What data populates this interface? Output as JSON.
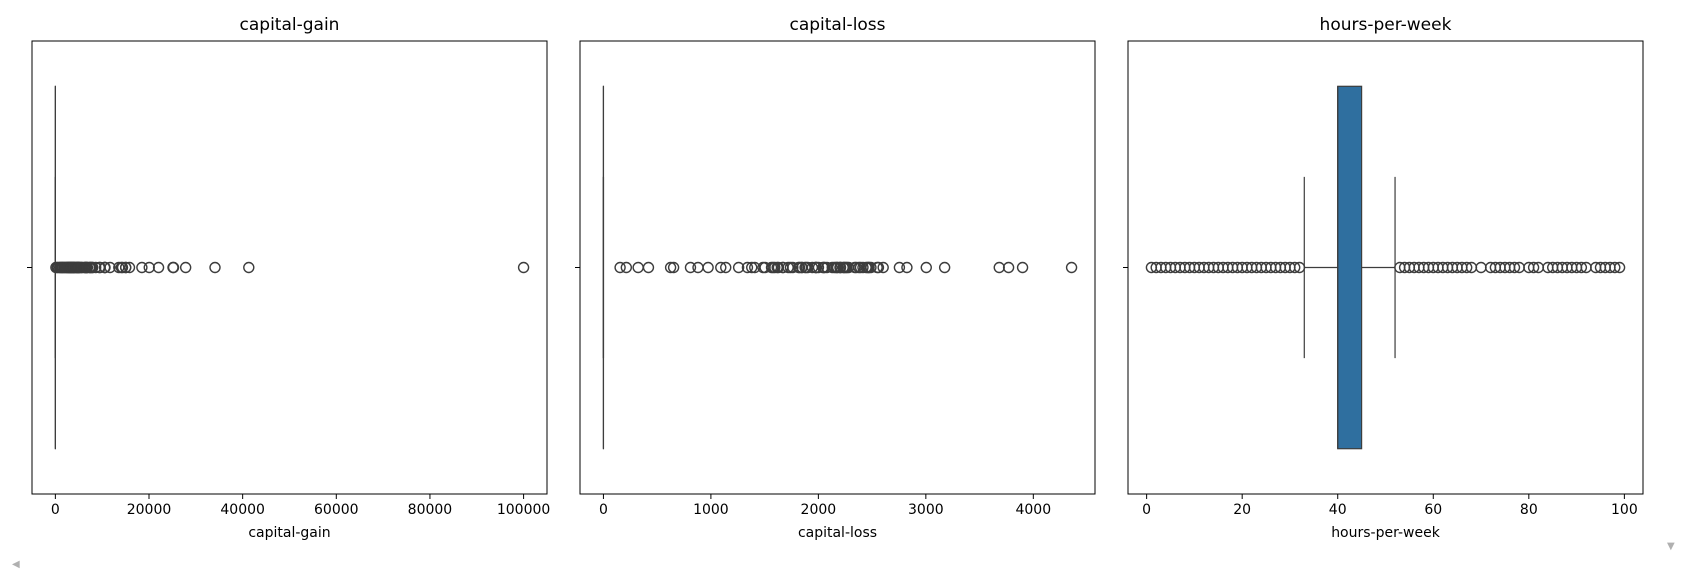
{
  "chart_data": [
    {
      "type": "box",
      "orientation": "horizontal",
      "title": "capital-gain",
      "xlabel": "capital-gain",
      "ylabel": "",
      "xlim": [
        -4990,
        105000
      ],
      "xticks": [
        0,
        20000,
        40000,
        60000,
        80000,
        100000
      ],
      "xtick_labels": [
        "0",
        "20000",
        "40000",
        "60000",
        "80000",
        "100000"
      ],
      "box": {
        "whisker_low": 0,
        "q1": 0,
        "median": 0,
        "q3": 0,
        "whisker_high": 0
      },
      "box_filled": false,
      "outliers": [
        114,
        401,
        594,
        914,
        1055,
        1151,
        1409,
        1471,
        1506,
        1797,
        1831,
        2050,
        2174,
        2354,
        2463,
        2580,
        2635,
        2829,
        2885,
        2907,
        2964,
        3103,
        3137,
        3273,
        3325,
        3411,
        3418,
        3432,
        3464,
        3674,
        3781,
        3818,
        3887,
        3908,
        3942,
        4064,
        4101,
        4386,
        4416,
        4508,
        4650,
        4687,
        4787,
        4865,
        4931,
        4934,
        5013,
        5060,
        5178,
        5455,
        5556,
        5721,
        6097,
        6360,
        6418,
        6497,
        6514,
        6723,
        6767,
        6849,
        7298,
        7430,
        7443,
        7688,
        7896,
        7978,
        8614,
        9386,
        9562,
        10520,
        10566,
        10605,
        11678,
        13550,
        14084,
        14344,
        15020,
        15024,
        15831,
        18481,
        20051,
        22040,
        25124,
        25236,
        27828,
        34095,
        41310,
        99999
      ],
      "grid": false,
      "legend": "none"
    },
    {
      "type": "box",
      "orientation": "horizontal",
      "title": "capital-loss",
      "xlabel": "capital-loss",
      "ylabel": "",
      "xlim": [
        -218,
        4574
      ],
      "xticks": [
        0,
        1000,
        2000,
        3000,
        4000
      ],
      "xtick_labels": [
        "0",
        "1000",
        "2000",
        "3000",
        "4000"
      ],
      "box": {
        "whisker_low": 0,
        "q1": 0,
        "median": 0,
        "q3": 0,
        "whisker_high": 0
      },
      "box_filled": false,
      "outliers": [
        155,
        213,
        323,
        419,
        625,
        653,
        810,
        880,
        974,
        1092,
        1138,
        1258,
        1340,
        1380,
        1408,
        1485,
        1504,
        1564,
        1579,
        1594,
        1617,
        1628,
        1668,
        1672,
        1719,
        1740,
        1762,
        1816,
        1825,
        1844,
        1848,
        1876,
        1887,
        1902,
        1944,
        1974,
        1977,
        1980,
        2001,
        2042,
        2051,
        2057,
        2080,
        2129,
        2149,
        2163,
        2174,
        2179,
        2201,
        2205,
        2206,
        2231,
        2238,
        2246,
        2258,
        2267,
        2282,
        2339,
        2352,
        2377,
        2392,
        2415,
        2444,
        2457,
        2467,
        2472,
        2489,
        2547,
        2559,
        2603,
        2754,
        2824,
        3004,
        3175,
        3683,
        3770,
        3900,
        4356
      ],
      "grid": false,
      "legend": "none"
    },
    {
      "type": "box",
      "orientation": "horizontal",
      "title": "hours-per-week",
      "xlabel": "hours-per-week",
      "ylabel": "",
      "xlim": [
        -3.9,
        103.9
      ],
      "xticks": [
        0,
        20,
        40,
        60,
        80,
        100
      ],
      "xtick_labels": [
        "0",
        "20",
        "40",
        "60",
        "80",
        "100"
      ],
      "box": {
        "whisker_low": 33,
        "q1": 40,
        "median": 40,
        "q3": 45,
        "whisker_high": 52
      },
      "box_filled": true,
      "box_color": "#2f6f9f",
      "outliers": [
        1,
        2,
        3,
        4,
        5,
        6,
        7,
        8,
        9,
        10,
        11,
        12,
        13,
        14,
        15,
        16,
        17,
        18,
        19,
        20,
        21,
        22,
        23,
        24,
        25,
        26,
        27,
        28,
        29,
        30,
        31,
        32,
        53,
        54,
        55,
        56,
        57,
        58,
        59,
        60,
        61,
        62,
        63,
        64,
        65,
        66,
        67,
        68,
        70,
        72,
        73,
        74,
        75,
        76,
        77,
        78,
        80,
        81,
        82,
        84,
        85,
        86,
        87,
        88,
        89,
        90,
        91,
        92,
        94,
        95,
        96,
        97,
        98,
        99
      ],
      "grid": false,
      "legend": "none"
    }
  ]
}
